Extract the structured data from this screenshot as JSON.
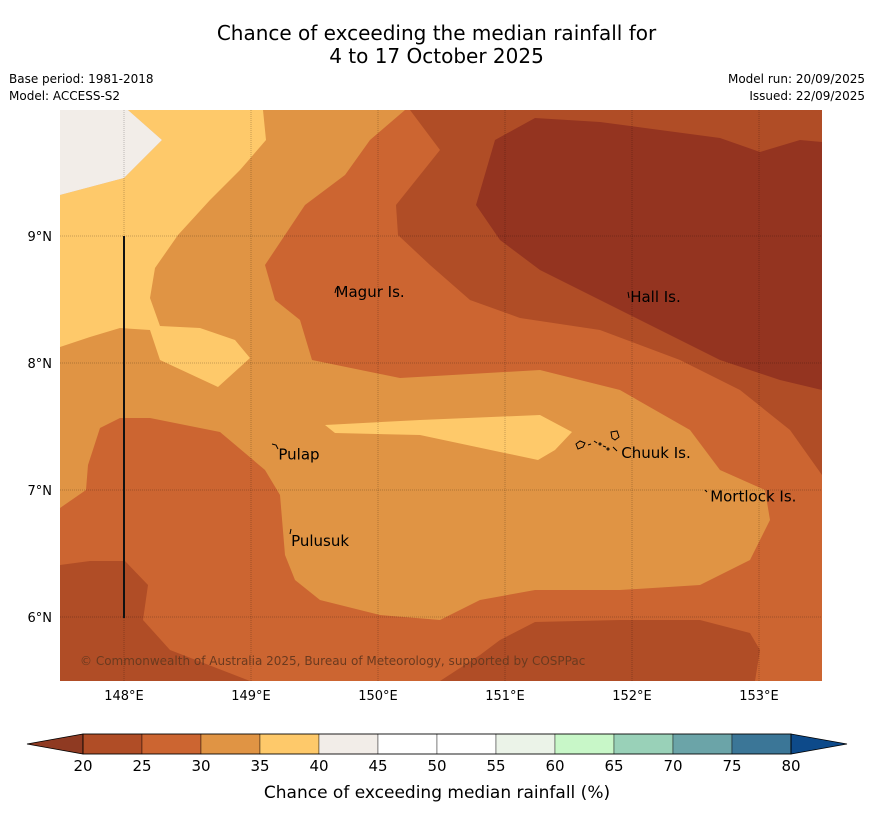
{
  "title_line1": "Chance of exceeding the median rainfall for",
  "title_line2": "4 to 17 October 2025",
  "meta_left": {
    "base_period": "Base period: 1981-2018",
    "model": "Model: ACCESS-S2"
  },
  "meta_right": {
    "model_run": "Model run: 20/09/2025",
    "issued": "Issued: 22/09/2025"
  },
  "lat_ticks": [
    {
      "label": "9°N",
      "lat": 9
    },
    {
      "label": "8°N",
      "lat": 8
    },
    {
      "label": "7°N",
      "lat": 7
    },
    {
      "label": "6°N",
      "lat": 6
    }
  ],
  "lon_ticks": [
    {
      "label": "148°E",
      "lon": 148
    },
    {
      "label": "149°E",
      "lon": 149
    },
    {
      "label": "150°E",
      "lon": 150
    },
    {
      "label": "151°E",
      "lon": 151
    },
    {
      "label": "152°E",
      "lon": 152
    },
    {
      "label": "153°E",
      "lon": 153
    }
  ],
  "places": [
    {
      "name": "Magur Is.",
      "lon": 149.65,
      "lat": 8.56
    },
    {
      "name": "Hall Is.",
      "lon": 151.97,
      "lat": 8.52
    },
    {
      "name": "Pulap",
      "lon": 149.2,
      "lat": 7.28
    },
    {
      "name": "Chuuk Is.",
      "lon": 151.9,
      "lat": 7.29
    },
    {
      "name": "Mortlock Is.",
      "lon": 152.6,
      "lat": 6.95
    },
    {
      "name": "Pulusuk",
      "lon": 149.3,
      "lat": 6.6
    }
  ],
  "copyright": "© Commonwealth of Australia 2025, Bureau of Meteorology, supported by COSPPac",
  "colorbar": {
    "label": "Chance of exceeding median rainfall (%)",
    "ticks": [
      "20",
      "25",
      "30",
      "35",
      "40",
      "45",
      "50",
      "55",
      "60",
      "65",
      "70",
      "75",
      "80"
    ],
    "under_color": "#8f3a22",
    "over_color": "#0d4a8a",
    "colors": [
      "#b04d26",
      "#cc6531",
      "#e09444",
      "#fec96a",
      "#f2ede8",
      "#ffffff",
      "#ffffff",
      "#ebf3e8",
      "#c8f7c8",
      "#99d1b8",
      "#6ba4a8",
      "#3b7697"
    ]
  },
  "zone_colors": {
    "c20_25": "#b04d26",
    "c25_30": "#cc6531",
    "c30_35": "#e09444",
    "c35_40": "#fec96a",
    "c40_45": "#f2ede8",
    "below20": "#943420"
  }
}
